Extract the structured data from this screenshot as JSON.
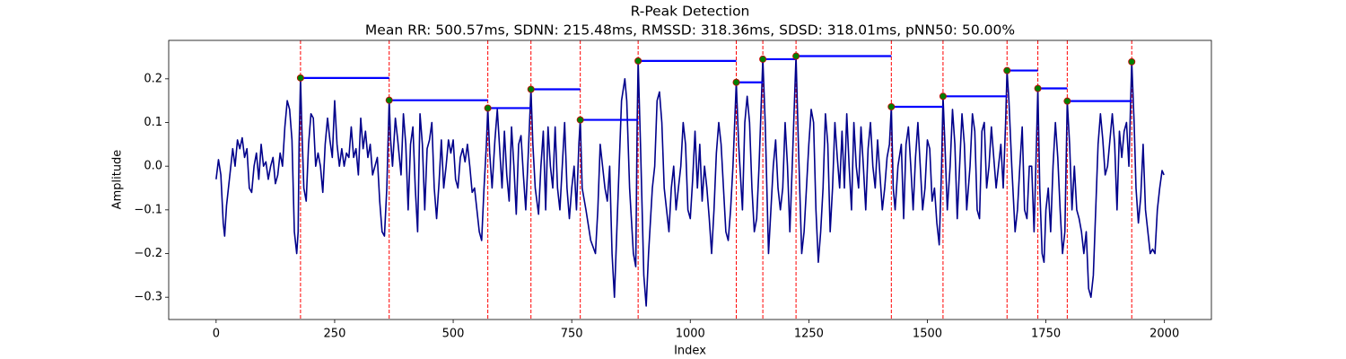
{
  "chart_data": {
    "type": "line",
    "title": "R-Peak Detection",
    "subtitle": "Mean RR: 500.57ms, SDNN: 215.48ms, RMSSD: 318.36ms, SDSD: 318.01ms, pNN50: 50.00%",
    "xlabel": "Index",
    "ylabel": "Amplitude",
    "xlim": [
      -100,
      2099
    ],
    "ylim": [
      -0.351,
      0.288
    ],
    "xticks": [
      0,
      250,
      500,
      750,
      1000,
      1250,
      1500,
      1750,
      2000
    ],
    "yticks": [
      {
        "value": -0.3,
        "label": "−0.3"
      },
      {
        "value": -0.2,
        "label": "−0.2"
      },
      {
        "value": -0.1,
        "label": "−0.1"
      },
      {
        "value": 0,
        "label": "0.0"
      },
      0.1,
      0.2
    ],
    "color": "#00008b",
    "x": [
      0,
      5,
      10,
      15,
      18,
      22,
      28,
      35,
      40,
      45,
      50,
      55,
      60,
      65,
      70,
      75,
      80,
      85,
      90,
      95,
      100,
      105,
      110,
      115,
      120,
      125,
      130,
      135,
      140,
      145,
      150,
      155,
      160,
      165,
      170,
      173,
      175,
      178,
      181,
      185,
      190,
      195,
      200,
      205,
      210,
      215,
      220,
      225,
      230,
      235,
      240,
      245,
      250,
      255,
      260,
      265,
      270,
      275,
      280,
      285,
      290,
      295,
      300,
      305,
      310,
      315,
      320,
      325,
      330,
      340,
      345,
      350,
      355,
      360,
      365,
      368,
      372,
      378,
      383,
      390,
      395,
      400,
      405,
      410,
      415,
      420,
      425,
      430,
      435,
      440,
      445,
      450,
      455,
      460,
      465,
      470,
      475,
      480,
      485,
      490,
      495,
      500,
      505,
      510,
      515,
      520,
      525,
      530,
      535,
      540,
      545,
      550,
      555,
      560,
      565,
      570,
      573,
      577,
      582,
      588,
      593,
      598,
      603,
      608,
      613,
      618,
      623,
      628,
      633,
      638,
      643,
      648,
      653,
      658,
      664,
      668,
      673,
      680,
      685,
      690,
      695,
      700,
      705,
      710,
      715,
      720,
      725,
      730,
      735,
      740,
      745,
      750,
      755,
      760,
      765,
      768,
      772,
      780,
      790,
      800,
      805,
      810,
      820,
      825,
      830,
      835,
      840,
      845,
      850,
      855,
      862,
      866,
      872,
      880,
      885,
      888,
      890,
      895,
      902,
      907,
      912,
      920,
      925,
      930,
      935,
      940,
      945,
      950,
      955,
      960,
      965,
      970,
      975,
      980,
      985,
      990,
      995,
      1000,
      1005,
      1010,
      1015,
      1020,
      1025,
      1030,
      1035,
      1040,
      1045,
      1050,
      1055,
      1060,
      1065,
      1070,
      1075,
      1080,
      1085,
      1090,
      1097,
      1102,
      1110,
      1115,
      1120,
      1125,
      1130,
      1135,
      1140,
      1145,
      1153,
      1158,
      1165,
      1170,
      1175,
      1180,
      1185,
      1190,
      1195,
      1200,
      1205,
      1210,
      1215,
      1223,
      1228,
      1235,
      1240,
      1245,
      1250,
      1255,
      1260,
      1265,
      1270,
      1275,
      1280,
      1285,
      1290,
      1295,
      1300,
      1305,
      1310,
      1315,
      1320,
      1325,
      1330,
      1335,
      1340,
      1345,
      1350,
      1355,
      1360,
      1365,
      1370,
      1375,
      1380,
      1385,
      1390,
      1395,
      1400,
      1405,
      1410,
      1415,
      1420,
      1424,
      1428,
      1432,
      1438,
      1445,
      1450,
      1455,
      1460,
      1465,
      1470,
      1475,
      1480,
      1485,
      1490,
      1495,
      1500,
      1505,
      1510,
      1515,
      1520,
      1525,
      1530,
      1533,
      1537,
      1542,
      1548,
      1553,
      1558,
      1563,
      1568,
      1573,
      1578,
      1583,
      1590,
      1595,
      1600,
      1605,
      1610,
      1615,
      1620,
      1625,
      1630,
      1635,
      1640,
      1645,
      1650,
      1655,
      1660,
      1665,
      1668,
      1672,
      1678,
      1685,
      1690,
      1695,
      1700,
      1705,
      1710,
      1715,
      1720,
      1725,
      1730,
      1733,
      1737,
      1742,
      1746,
      1750,
      1755,
      1760,
      1765,
      1770,
      1775,
      1780,
      1785,
      1790,
      1795,
      1800,
      1805,
      1810,
      1815,
      1820,
      1825,
      1830,
      1835,
      1840,
      1845,
      1850,
      1855,
      1860,
      1865,
      1870,
      1875,
      1880,
      1885,
      1890,
      1895,
      1900,
      1905,
      1910,
      1915,
      1920,
      1925,
      1931,
      1936,
      1940,
      1945,
      1950,
      1955,
      1960,
      1965,
      1970,
      1975,
      1980,
      1985,
      1990,
      1995,
      1999
    ],
    "values": [
      -0.03,
      0.015,
      -0.02,
      -0.13,
      -0.16,
      -0.09,
      -0.03,
      0.04,
      0.0,
      0.06,
      0.04,
      0.065,
      0.02,
      0.04,
      -0.05,
      -0.06,
      0.0,
      0.03,
      -0.03,
      0.05,
      0.0,
      0.01,
      -0.03,
      0.0,
      0.02,
      -0.04,
      -0.02,
      0.03,
      0.0,
      0.09,
      0.15,
      0.13,
      0.06,
      -0.15,
      -0.2,
      -0.15,
      0.05,
      0.202,
      0.08,
      -0.05,
      -0.08,
      0.05,
      0.12,
      0.11,
      0.0,
      0.03,
      0.0,
      -0.06,
      0.05,
      0.11,
      0.06,
      0.02,
      0.15,
      0.05,
      0.0,
      0.04,
      0.0,
      0.03,
      0.02,
      0.09,
      0.02,
      0.04,
      -0.02,
      0.11,
      0.04,
      0.08,
      0.02,
      0.05,
      -0.02,
      0.02,
      -0.08,
      -0.15,
      -0.16,
      -0.05,
      0.151,
      0.06,
      0.0,
      0.11,
      0.06,
      -0.02,
      0.12,
      0.05,
      -0.1,
      0.05,
      0.09,
      -0.05,
      -0.15,
      0.12,
      0.05,
      -0.1,
      0.04,
      0.06,
      0.1,
      -0.05,
      -0.12,
      -0.04,
      0.06,
      -0.05,
      0.0,
      0.06,
      0.03,
      0.06,
      -0.03,
      -0.05,
      0.02,
      0.04,
      0.01,
      0.05,
      0.0,
      -0.06,
      -0.05,
      -0.1,
      -0.15,
      -0.17,
      -0.05,
      0.05,
      0.133,
      0.03,
      -0.05,
      0.06,
      0.13,
      0.04,
      -0.05,
      0.08,
      -0.02,
      -0.08,
      0.09,
      0.0,
      -0.11,
      0.05,
      0.07,
      -0.02,
      -0.1,
      0.02,
      0.176,
      0.05,
      -0.05,
      -0.11,
      0.0,
      0.08,
      -0.1,
      0.09,
      0.0,
      -0.05,
      0.09,
      -0.05,
      -0.1,
      0.0,
      0.1,
      -0.05,
      -0.12,
      -0.05,
      0.0,
      -0.1,
      0.05,
      0.106,
      -0.05,
      -0.1,
      -0.17,
      -0.2,
      -0.1,
      0.05,
      -0.05,
      -0.08,
      0.0,
      -0.2,
      -0.3,
      -0.15,
      0.0,
      0.15,
      0.2,
      0.15,
      -0.05,
      -0.2,
      -0.23,
      0.1,
      0.241,
      0.05,
      -0.25,
      -0.32,
      -0.2,
      -0.05,
      0.0,
      0.15,
      0.17,
      0.1,
      -0.05,
      -0.1,
      -0.15,
      -0.05,
      0.0,
      -0.1,
      -0.05,
      0.0,
      0.1,
      0.05,
      -0.1,
      -0.12,
      -0.03,
      0.08,
      -0.05,
      0.05,
      -0.08,
      0.0,
      -0.05,
      -0.12,
      -0.2,
      -0.1,
      0.03,
      0.1,
      0.05,
      -0.05,
      -0.15,
      -0.17,
      -0.1,
      0.0,
      0.192,
      0.05,
      -0.1,
      0.1,
      0.16,
      0.1,
      -0.05,
      -0.15,
      -0.12,
      0.0,
      0.245,
      0.1,
      -0.2,
      -0.1,
      0.0,
      0.06,
      -0.05,
      -0.1,
      -0.05,
      0.1,
      0.0,
      -0.15,
      0.0,
      0.252,
      0.05,
      -0.2,
      -0.15,
      -0.05,
      0.05,
      0.13,
      0.1,
      -0.1,
      -0.22,
      -0.15,
      -0.05,
      0.12,
      0.05,
      -0.15,
      -0.05,
      0.1,
      0.02,
      -0.05,
      0.08,
      -0.05,
      0.12,
      0.0,
      -0.1,
      0.1,
      0.0,
      -0.05,
      0.09,
      0.0,
      -0.1,
      0.04,
      0.1,
      0.0,
      -0.05,
      0.06,
      -0.02,
      -0.1,
      -0.05,
      0.02,
      0.05,
      0.136,
      -0.05,
      -0.1,
      0.0,
      0.05,
      -0.12,
      0.05,
      0.09,
      0.0,
      -0.1,
      0.02,
      0.1,
      0.0,
      -0.1,
      -0.05,
      0.06,
      0.04,
      -0.08,
      -0.05,
      -0.13,
      -0.18,
      0.0,
      0.16,
      0.05,
      -0.1,
      0.0,
      0.13,
      0.05,
      -0.12,
      0.0,
      0.12,
      0.05,
      -0.1,
      0.0,
      0.12,
      0.08,
      -0.1,
      -0.12,
      0.08,
      0.1,
      -0.05,
      0.0,
      0.09,
      0.02,
      -0.05,
      0.0,
      0.05,
      -0.05,
      0.1,
      0.219,
      0.15,
      0.0,
      -0.15,
      -0.1,
      0.0,
      0.09,
      -0.1,
      -0.12,
      0.0,
      0.0,
      -0.15,
      0.05,
      0.178,
      -0.05,
      -0.2,
      -0.22,
      -0.1,
      -0.05,
      -0.15,
      0.0,
      0.1,
      0.02,
      -0.1,
      -0.2,
      -0.15,
      0.149,
      0.05,
      -0.1,
      0.0,
      -0.1,
      -0.12,
      -0.15,
      -0.2,
      -0.15,
      -0.28,
      -0.3,
      -0.25,
      -0.1,
      0.05,
      0.12,
      0.06,
      -0.02,
      0.0,
      0.06,
      0.12,
      0.05,
      -0.1,
      0.08,
      0.02,
      0.08,
      0.1,
      0.0,
      0.239,
      0.1,
      -0.05,
      -0.13,
      -0.07,
      0.05,
      -0.1,
      -0.15,
      -0.2,
      -0.19,
      -0.2,
      -0.1,
      -0.05,
      -0.01,
      -0.02
    ],
    "peaks": {
      "x": [
        178,
        365,
        573,
        664,
        768,
        890,
        1097,
        1153,
        1223,
        1424,
        1533,
        1668,
        1733,
        1795,
        1931
      ],
      "values": [
        0.202,
        0.151,
        0.133,
        0.176,
        0.106,
        0.241,
        0.192,
        0.245,
        0.252,
        0.136,
        0.16,
        0.219,
        0.178,
        0.149,
        0.239
      ],
      "color": "#008000",
      "edge_color": "#cc0000",
      "line_color": "#ff0000",
      "interval_color": "#0000ff"
    }
  }
}
